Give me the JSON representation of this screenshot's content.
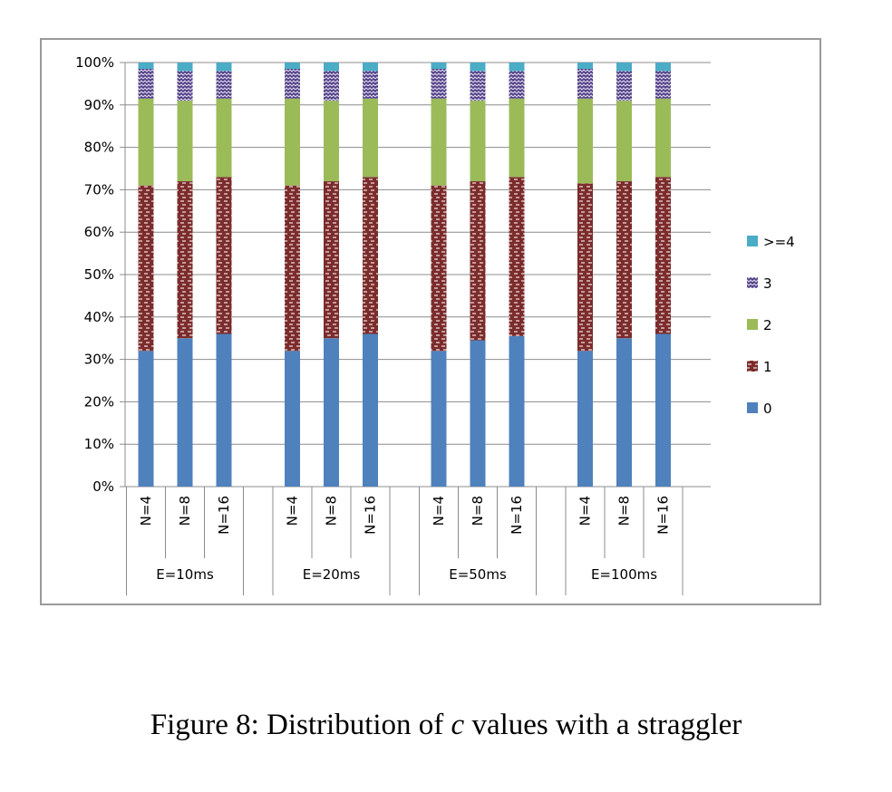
{
  "caption": {
    "prefix": "Figure 8: Distribution of ",
    "variable": "c",
    "suffix": " values with a straggler"
  },
  "chart_data": {
    "type": "bar",
    "stacked": true,
    "title": "",
    "xlabel": "",
    "ylabel": "",
    "ylim": [
      0,
      100
    ],
    "yticks": [
      "0%",
      "10%",
      "20%",
      "30%",
      "40%",
      "50%",
      "60%",
      "70%",
      "80%",
      "90%",
      "100%"
    ],
    "grid": true,
    "legend_position": "right",
    "groups": [
      "E=10ms",
      "E=20ms",
      "E=50ms",
      "E=100ms"
    ],
    "categories": [
      "N=4",
      "N=8",
      "N=16",
      "N=4",
      "N=8",
      "N=16",
      "N=4",
      "N=8",
      "N=16",
      "N=4",
      "N=8",
      "N=16"
    ],
    "series": [
      {
        "name": "0",
        "color": "#4f81bd",
        "pattern": "solid",
        "values": [
          32,
          35,
          36,
          32,
          35,
          36,
          32,
          34.5,
          35.5,
          32,
          35,
          36
        ]
      },
      {
        "name": "1",
        "color": "#7b2c2c",
        "pattern": "dashed",
        "values": [
          39,
          37,
          37,
          39,
          37,
          37,
          39,
          37.5,
          37.5,
          39.5,
          37,
          37
        ]
      },
      {
        "name": "2",
        "color": "#9bbb59",
        "pattern": "solid",
        "values": [
          20.5,
          19,
          18.5,
          20.5,
          19,
          18.5,
          20.5,
          19,
          18.5,
          20,
          19,
          18.5
        ]
      },
      {
        "name": "3",
        "color": "#4d3b80",
        "pattern": "zigzag",
        "values": [
          7,
          7,
          6.5,
          7,
          7,
          6.5,
          7,
          7,
          6.5,
          7,
          7,
          6.5
        ]
      },
      {
        "name": ">=4",
        "color": "#4bacc6",
        "pattern": "solid",
        "values": [
          1.5,
          2,
          2,
          1.5,
          2,
          2,
          1.5,
          2,
          2,
          1.5,
          2,
          2
        ]
      }
    ]
  }
}
